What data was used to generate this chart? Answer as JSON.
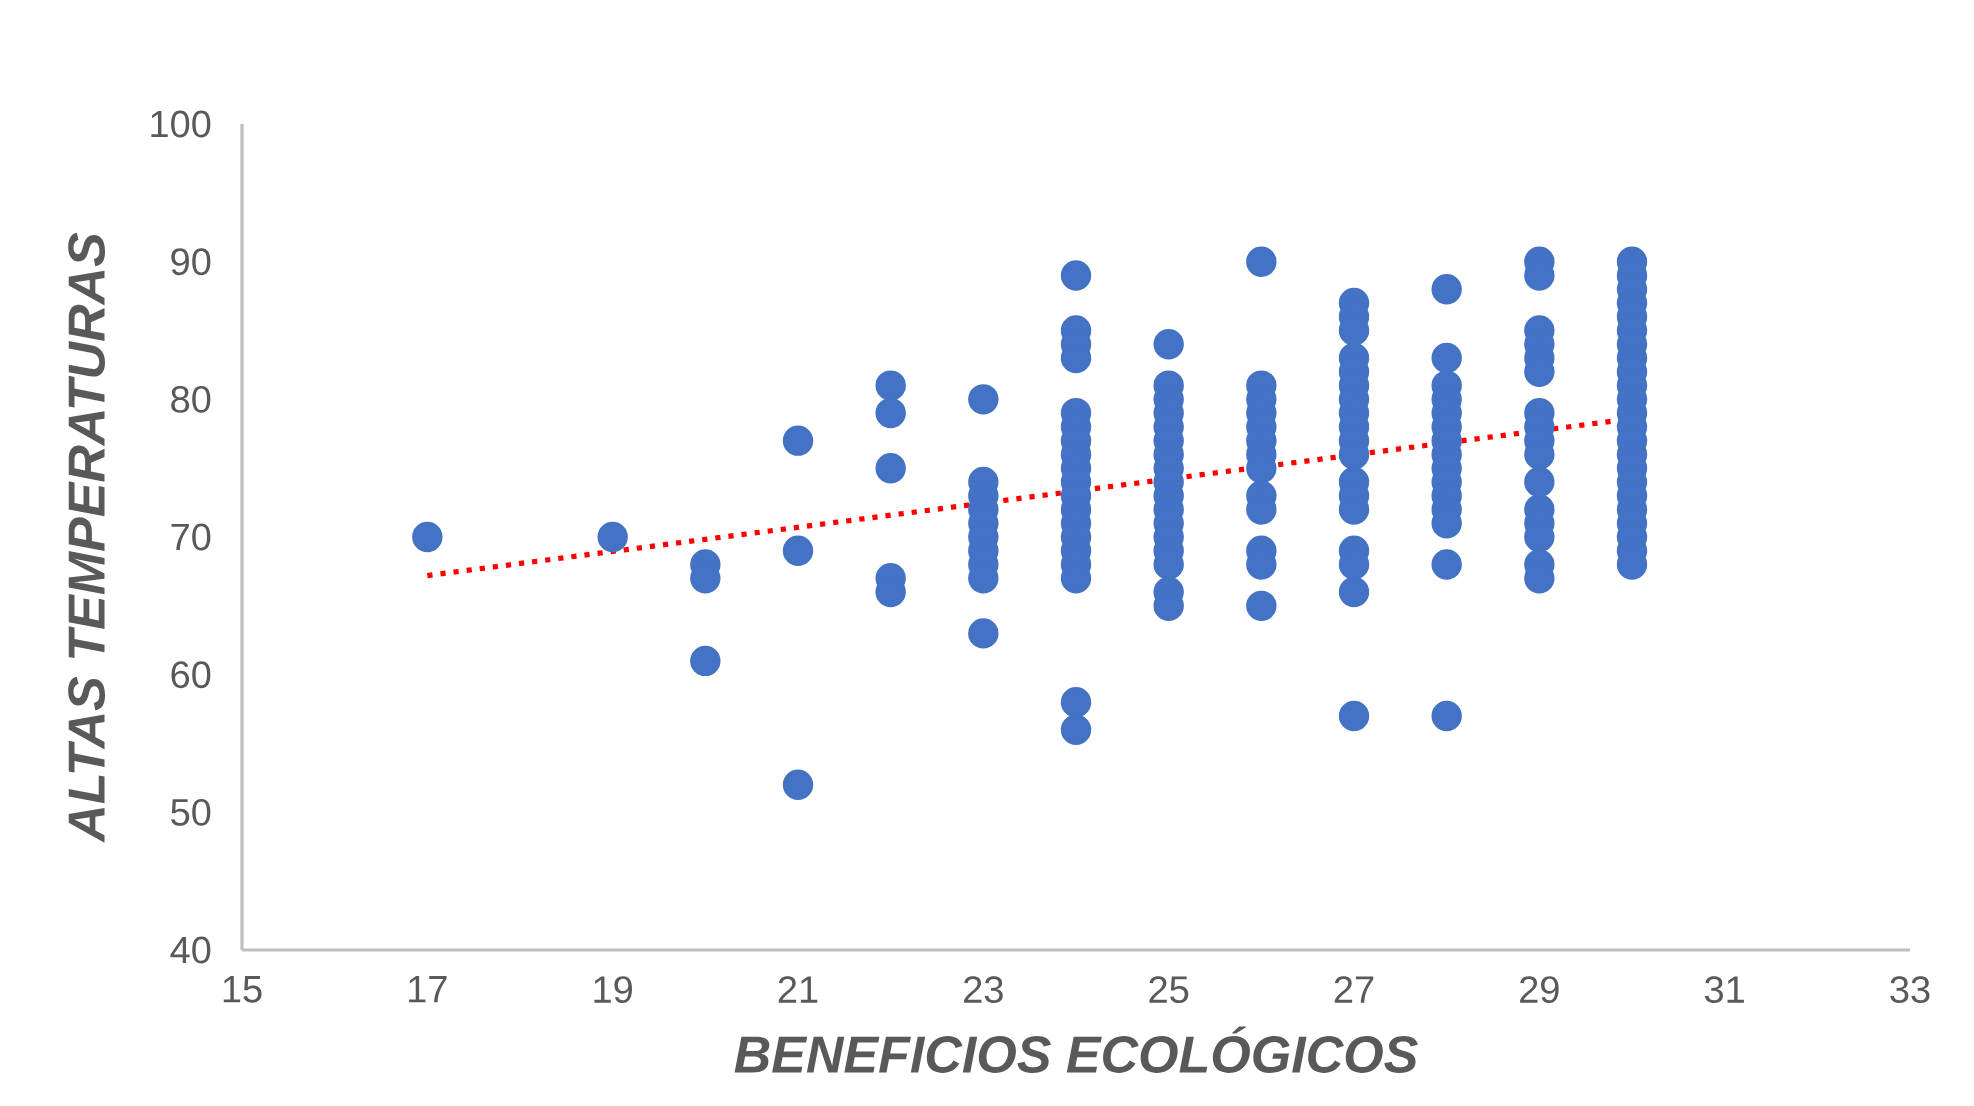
{
  "chart_data": {
    "type": "scatter",
    "xlabel": "BENEFICIOS ECOLÓGICOS",
    "ylabel": "ALTAS TEMPERATURAS",
    "xlim": [
      15,
      33
    ],
    "xticks": [
      15,
      17,
      19,
      21,
      23,
      25,
      27,
      29,
      31,
      33
    ],
    "ylim": [
      40,
      100
    ],
    "yticks": [
      40,
      50,
      60,
      70,
      80,
      90,
      100
    ],
    "grid": false,
    "series": [
      {
        "color": "#4472c4",
        "marker": "circle",
        "x": [
          17,
          19,
          20,
          20,
          20,
          21,
          21,
          21,
          22,
          22,
          22,
          22,
          22,
          23,
          23,
          23,
          23,
          23,
          23,
          23,
          23,
          23,
          23,
          24,
          24,
          24,
          24,
          24,
          24,
          24,
          24,
          24,
          24,
          24,
          24,
          24,
          24,
          24,
          24,
          24,
          24,
          24,
          25,
          25,
          25,
          25,
          25,
          25,
          25,
          25,
          25,
          25,
          25,
          25,
          25,
          25,
          25,
          25,
          25,
          26,
          26,
          26,
          26,
          26,
          26,
          26,
          26,
          26,
          26,
          26,
          26,
          26,
          27,
          27,
          27,
          27,
          27,
          27,
          27,
          27,
          27,
          27,
          27,
          27,
          27,
          27,
          27,
          27,
          27,
          27,
          28,
          28,
          28,
          28,
          28,
          28,
          28,
          28,
          28,
          28,
          28,
          28,
          28,
          28,
          28,
          29,
          29,
          29,
          29,
          29,
          29,
          29,
          29,
          29,
          29,
          29,
          29,
          29,
          29,
          29,
          29,
          30,
          30,
          30,
          30,
          30,
          30,
          30,
          30,
          30,
          30,
          30,
          30,
          30,
          30,
          30,
          30,
          30,
          30,
          30,
          30,
          30,
          30,
          30
        ],
        "values": [
          70,
          70,
          68,
          67,
          61,
          77,
          69,
          52,
          81,
          79,
          75,
          67,
          66,
          80,
          74,
          73,
          72,
          71,
          70,
          69,
          68,
          67,
          63,
          89,
          85,
          84,
          83,
          79,
          78,
          77,
          76,
          75,
          74,
          73,
          72,
          71,
          70,
          69,
          68,
          67,
          58,
          56,
          84,
          81,
          80,
          79,
          78,
          77,
          76,
          75,
          74,
          73,
          72,
          71,
          70,
          69,
          68,
          66,
          65,
          90,
          81,
          80,
          79,
          78,
          77,
          76,
          75,
          73,
          72,
          69,
          68,
          65,
          87,
          86,
          85,
          83,
          82,
          81,
          80,
          79,
          78,
          77,
          76,
          74,
          73,
          72,
          69,
          68,
          66,
          57,
          88,
          83,
          81,
          80,
          79,
          78,
          77,
          76,
          75,
          74,
          73,
          72,
          71,
          68,
          57,
          90,
          89,
          85,
          84,
          83,
          82,
          79,
          78,
          77,
          76,
          74,
          72,
          71,
          70,
          68,
          67,
          90,
          89,
          88,
          87,
          86,
          85,
          84,
          83,
          82,
          81,
          80,
          79,
          78,
          77,
          76,
          75,
          74,
          73,
          72,
          71,
          70,
          69,
          68
        ]
      },
      {
        "type": "line",
        "color": "#ff0000",
        "marker": "none",
        "line_style": "dotted",
        "x": [
          17,
          30
        ],
        "values": [
          67.2,
          78.6
        ]
      }
    ]
  }
}
